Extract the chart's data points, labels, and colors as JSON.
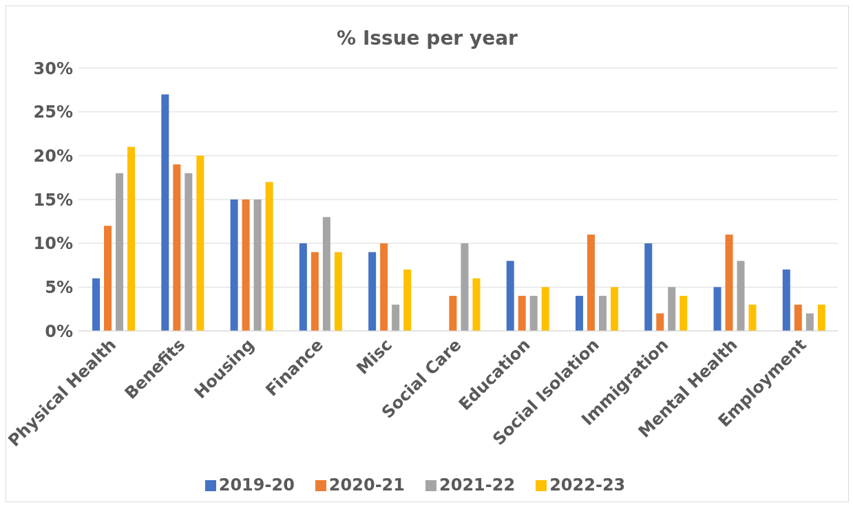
{
  "chart_data": {
    "type": "bar",
    "title": "% Issue per year",
    "categories": [
      "Physical Health",
      "Benefits",
      "Housing",
      "Finance",
      "Misc",
      "Social Care",
      "Education",
      "Social Isolation",
      "Immigration",
      "Mental Health",
      "Employment"
    ],
    "series": [
      {
        "name": "2019-20",
        "color": "#4472c4",
        "values": [
          6,
          27,
          15,
          10,
          9,
          0,
          8,
          4,
          10,
          5,
          7
        ]
      },
      {
        "name": "2020-21",
        "color": "#ed7d31",
        "values": [
          12,
          19,
          15,
          9,
          10,
          4,
          4,
          11,
          2,
          11,
          3
        ]
      },
      {
        "name": "2021-22",
        "color": "#a5a5a5",
        "values": [
          18,
          18,
          15,
          13,
          3,
          10,
          4,
          4,
          5,
          8,
          2
        ]
      },
      {
        "name": "2022-23",
        "color": "#ffc000",
        "values": [
          21,
          20,
          17,
          9,
          7,
          6,
          5,
          5,
          4,
          3,
          3
        ]
      }
    ],
    "ylim": [
      0,
      30
    ],
    "yticks": [
      {
        "value": 0,
        "label": "0%"
      },
      {
        "value": 5,
        "label": "5%"
      },
      {
        "value": 10,
        "label": "10%"
      },
      {
        "value": 15,
        "label": "15%"
      },
      {
        "value": 20,
        "label": "20%"
      },
      {
        "value": 25,
        "label": "25%"
      },
      {
        "value": 30,
        "label": "30%"
      }
    ],
    "grid": "y",
    "legend": "bottom"
  }
}
